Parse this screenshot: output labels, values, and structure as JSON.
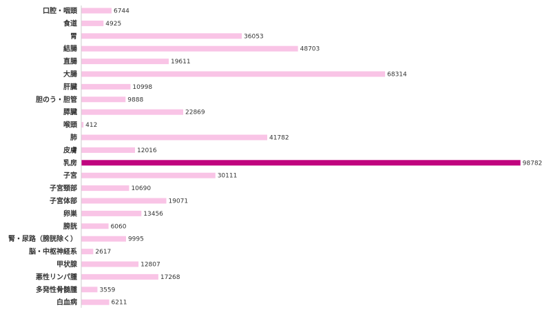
{
  "chart_data": {
    "type": "bar",
    "orientation": "horizontal",
    "categories": [
      "口腔・咽頭",
      "食道",
      "胃",
      "結腸",
      "直腸",
      "大腸",
      "肝臓",
      "胆のう・胆管",
      "膵臓",
      "喉頭",
      "肺",
      "皮膚",
      "乳房",
      "子宮",
      "子宮頸部",
      "子宮体部",
      "卵巣",
      "膀胱",
      "腎・尿路（膀胱除く）",
      "脳・中枢神経系",
      "甲状腺",
      "悪性リンパ腫",
      "多発性骨髄腫",
      "白血病"
    ],
    "values": [
      6744,
      4925,
      36053,
      48703,
      19611,
      68314,
      10998,
      9888,
      22869,
      412,
      41782,
      12016,
      98782,
      30111,
      10690,
      19071,
      13456,
      6060,
      9995,
      2617,
      12807,
      17268,
      3559,
      6211
    ],
    "highlight_category": "乳房",
    "colors": {
      "bar": "#f9c4e6",
      "highlight": "#c0047e",
      "axis": "#cccccc"
    },
    "xlim": [
      0,
      100000
    ],
    "data_labels": true,
    "grid": false,
    "legend": "none"
  }
}
